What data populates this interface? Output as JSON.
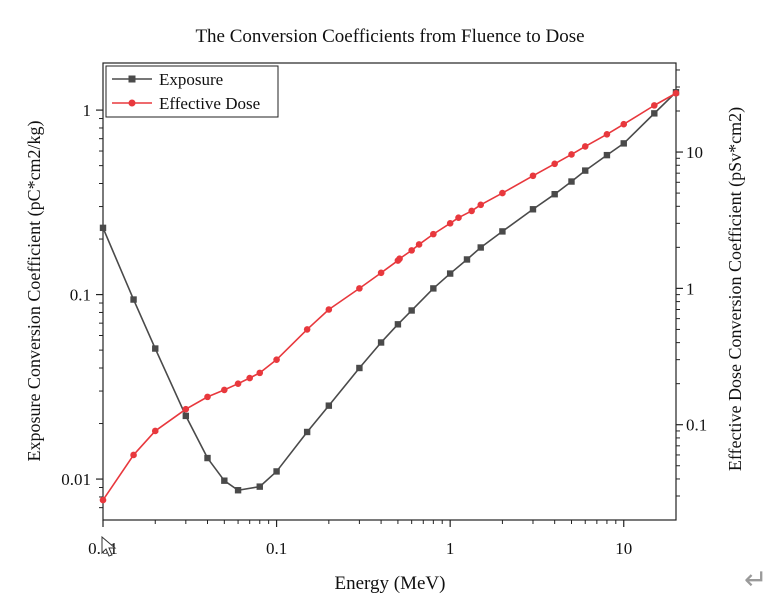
{
  "chart_data": {
    "type": "line",
    "title": "The Conversion Coefficients from Fluence to Dose",
    "xlabel": "Energy (MeV)",
    "ylabel_left": "Exposure Conversion Coefficient (pC*cm2/kg)",
    "ylabel_right": "Effective Dose Conversion Coefficient (pSv*cm2)",
    "x_scale": "log",
    "y_left_scale": "log",
    "y_right_scale": "log",
    "xlim": [
      0.01,
      20
    ],
    "ylim_left": [
      0.006,
      1.8
    ],
    "ylim_right": [
      0.02,
      45
    ],
    "x_ticks": [
      {
        "value": 0.01,
        "label": "0.01"
      },
      {
        "value": 0.1,
        "label": "0.1"
      },
      {
        "value": 1,
        "label": "1"
      },
      {
        "value": 10,
        "label": "10"
      }
    ],
    "y_left_ticks": [
      {
        "value": 0.01,
        "label": "0.01"
      },
      {
        "value": 0.1,
        "label": "0.1"
      },
      {
        "value": 1,
        "label": "1"
      }
    ],
    "y_right_ticks": [
      {
        "value": 0.1,
        "label": "0.1"
      },
      {
        "value": 1,
        "label": "1"
      },
      {
        "value": 10,
        "label": "10"
      }
    ],
    "grid": false,
    "legend_position": "top-left",
    "series": [
      {
        "name": "Exposure",
        "axis": "left",
        "color": "#4a4a4a",
        "marker": "square",
        "x": [
          0.01,
          0.015,
          0.02,
          0.03,
          0.04,
          0.05,
          0.06,
          0.08,
          0.1,
          0.15,
          0.2,
          0.3,
          0.4,
          0.5,
          0.6,
          0.8,
          1,
          1.25,
          1.5,
          2,
          3,
          4,
          5,
          6,
          8,
          10,
          15,
          20
        ],
        "y": [
          0.23,
          0.094,
          0.051,
          0.022,
          0.013,
          0.0098,
          0.0087,
          0.0091,
          0.011,
          0.018,
          0.025,
          0.04,
          0.055,
          0.069,
          0.082,
          0.108,
          0.13,
          0.155,
          0.18,
          0.22,
          0.29,
          0.35,
          0.41,
          0.47,
          0.57,
          0.66,
          0.96,
          1.25
        ]
      },
      {
        "name": "Effective Dose",
        "axis": "right",
        "color": "#e8383d",
        "marker": "circle",
        "x": [
          0.01,
          0.015,
          0.02,
          0.03,
          0.04,
          0.05,
          0.06,
          0.07,
          0.08,
          0.1,
          0.15,
          0.2,
          0.3,
          0.4,
          0.5,
          0.511,
          0.6,
          0.662,
          0.8,
          1,
          1.117,
          1.33,
          1.5,
          2,
          3,
          4,
          5,
          6,
          8,
          10,
          15,
          20
        ],
        "y": [
          0.028,
          0.06,
          0.09,
          0.13,
          0.16,
          0.18,
          0.2,
          0.22,
          0.24,
          0.3,
          0.5,
          0.7,
          1.0,
          1.3,
          1.6,
          1.65,
          1.9,
          2.1,
          2.5,
          3.0,
          3.3,
          3.7,
          4.1,
          5.0,
          6.7,
          8.2,
          9.6,
          11.0,
          13.5,
          16.0,
          22.0,
          27.0
        ]
      }
    ]
  }
}
